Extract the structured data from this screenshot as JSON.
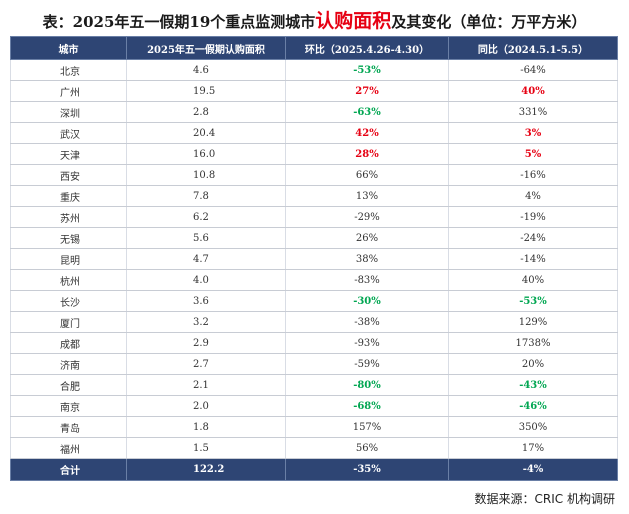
{
  "title": {
    "prefix": "表：2025年五一假期19个重点监测城市",
    "highlight": "认购面积",
    "suffix": "及其变化（单位：万平方米）"
  },
  "columns": [
    "城市",
    "2025年五一假期认购面积",
    "环比（2025.4.26-4.30）",
    "同比（2024.5.1-5.5）"
  ],
  "rows": [
    {
      "city": "北京",
      "area": "4.6",
      "mom": "-53%",
      "mom_color": "green",
      "yoy": "-64%",
      "yoy_color": ""
    },
    {
      "city": "广州",
      "area": "19.5",
      "mom": "27%",
      "mom_color": "red",
      "yoy": "40%",
      "yoy_color": "red"
    },
    {
      "city": "深圳",
      "area": "2.8",
      "mom": "-63%",
      "mom_color": "green",
      "yoy": "331%",
      "yoy_color": ""
    },
    {
      "city": "武汉",
      "area": "20.4",
      "mom": "42%",
      "mom_color": "red",
      "yoy": "3%",
      "yoy_color": "red"
    },
    {
      "city": "天津",
      "area": "16.0",
      "mom": "28%",
      "mom_color": "red",
      "yoy": "5%",
      "yoy_color": "red"
    },
    {
      "city": "西安",
      "area": "10.8",
      "mom": "66%",
      "mom_color": "",
      "yoy": "-16%",
      "yoy_color": ""
    },
    {
      "city": "重庆",
      "area": "7.8",
      "mom": "13%",
      "mom_color": "",
      "yoy": "4%",
      "yoy_color": ""
    },
    {
      "city": "苏州",
      "area": "6.2",
      "mom": "-29%",
      "mom_color": "",
      "yoy": "-19%",
      "yoy_color": ""
    },
    {
      "city": "无锡",
      "area": "5.6",
      "mom": "26%",
      "mom_color": "",
      "yoy": "-24%",
      "yoy_color": ""
    },
    {
      "city": "昆明",
      "area": "4.7",
      "mom": "38%",
      "mom_color": "",
      "yoy": "-14%",
      "yoy_color": ""
    },
    {
      "city": "杭州",
      "area": "4.0",
      "mom": "-83%",
      "mom_color": "",
      "yoy": "40%",
      "yoy_color": ""
    },
    {
      "city": "长沙",
      "area": "3.6",
      "mom": "-30%",
      "mom_color": "green",
      "yoy": "-53%",
      "yoy_color": "green"
    },
    {
      "city": "厦门",
      "area": "3.2",
      "mom": "-38%",
      "mom_color": "",
      "yoy": "129%",
      "yoy_color": ""
    },
    {
      "city": "成都",
      "area": "2.9",
      "mom": "-93%",
      "mom_color": "",
      "yoy": "1738%",
      "yoy_color": ""
    },
    {
      "city": "济南",
      "area": "2.7",
      "mom": "-59%",
      "mom_color": "",
      "yoy": "20%",
      "yoy_color": ""
    },
    {
      "city": "合肥",
      "area": "2.1",
      "mom": "-80%",
      "mom_color": "green",
      "yoy": "-43%",
      "yoy_color": "green"
    },
    {
      "city": "南京",
      "area": "2.0",
      "mom": "-68%",
      "mom_color": "green",
      "yoy": "-46%",
      "yoy_color": "green"
    },
    {
      "city": "青岛",
      "area": "1.8",
      "mom": "157%",
      "mom_color": "",
      "yoy": "350%",
      "yoy_color": ""
    },
    {
      "city": "福州",
      "area": "1.5",
      "mom": "56%",
      "mom_color": "",
      "yoy": "17%",
      "yoy_color": ""
    }
  ],
  "total": {
    "city": "合计",
    "area": "122.2",
    "mom": "-35%",
    "yoy": "-4%"
  },
  "source": "数据来源：CRIC 机构调研",
  "colors": {
    "header_bg": "#2e4574",
    "positive": "#e60012",
    "negative": "#00a651"
  }
}
